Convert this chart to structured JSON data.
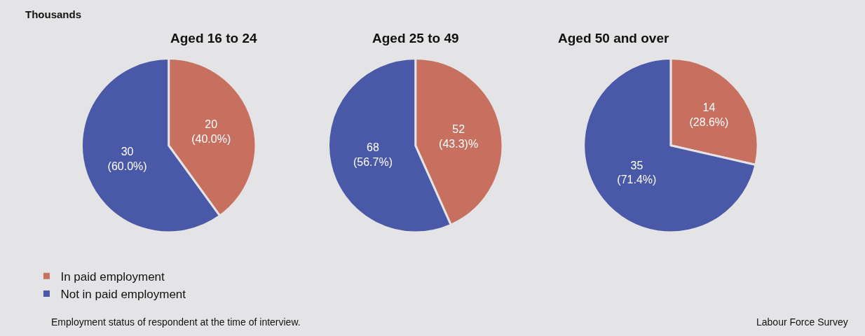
{
  "chart_data": [
    {
      "type": "pie",
      "title": "Aged 16 to 24",
      "subtitle": "Thousands",
      "categories": [
        "In paid employment",
        "Not in paid employment"
      ],
      "values": [
        20,
        30
      ],
      "colors": [
        "#c8705f",
        "#4a58a8"
      ],
      "value_labels": [
        "20\n(40.0%)",
        "30\n(60.0%)"
      ],
      "legend": "bottom left",
      "annotations": [
        "Employment status of respondent at the time of interview.",
        "Labour Force Survey"
      ]
    },
    {
      "type": "pie",
      "title": "Aged 25 to 49",
      "categories": [
        null,
        null
      ],
      "values": [
        52,
        68
      ],
      "colors": [
        "#c8705f",
        "#4a58a8"
      ],
      "value_labels": [
        "52\n(43.3)%",
        "68\n(56.7%)"
      ]
    },
    {
      "type": "pie",
      "title": "Aged 50 and over",
      "categories": [
        null,
        null
      ],
      "values": [
        14,
        35
      ],
      "colors": [
        "#c8705f",
        "#4a58a8"
      ],
      "value_labels": [
        "14\n(28.6%)",
        "35\n(71.4%)"
      ]
    }
  ]
}
